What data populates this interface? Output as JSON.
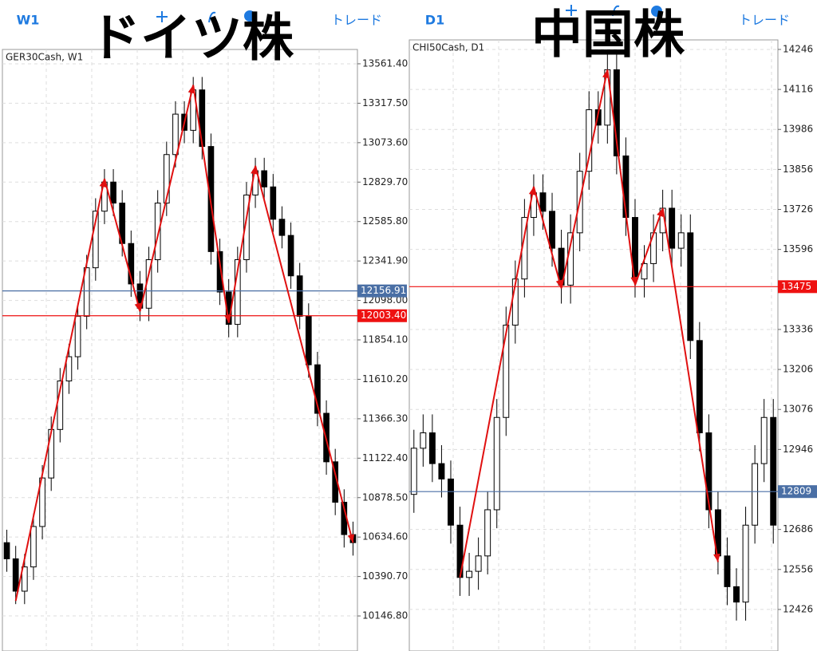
{
  "chart_data": [
    {
      "type": "candlestick",
      "title": "ドイツ株",
      "timeframe": "W1",
      "trade_label": "トレード",
      "symbol_label": "GER30Cash, W1",
      "open": [
        10600,
        10500,
        10300,
        10450,
        10700,
        11000,
        11300,
        11600,
        11750,
        12000,
        12300,
        12650,
        12830,
        12700,
        12450,
        12200,
        12050,
        12350,
        12700,
        13000,
        13250,
        13150,
        13400,
        13050,
        12400,
        12150,
        11950,
        12350,
        12750,
        12900,
        12800,
        12600,
        12500,
        12250,
        12000,
        11700,
        11400,
        11100,
        10850,
        10650
      ],
      "high": [
        10680,
        10580,
        10530,
        10780,
        11080,
        11380,
        11680,
        11830,
        12080,
        12380,
        12730,
        12910,
        12910,
        12780,
        12530,
        12280,
        12430,
        12780,
        13080,
        13330,
        13330,
        13480,
        13480,
        13130,
        12480,
        12230,
        12430,
        12830,
        12980,
        12980,
        12880,
        12680,
        12580,
        12330,
        12080,
        11780,
        11480,
        11180,
        10930,
        10730
      ],
      "low": [
        10420,
        10220,
        10220,
        10370,
        10620,
        10920,
        11220,
        11520,
        11670,
        11920,
        12220,
        12570,
        12620,
        12370,
        12120,
        11970,
        11970,
        12270,
        12620,
        12920,
        13070,
        13070,
        12970,
        12320,
        12070,
        11870,
        11870,
        12270,
        12670,
        12720,
        12520,
        12420,
        12170,
        11920,
        11620,
        11320,
        11020,
        10770,
        10570,
        10520
      ],
      "close": [
        10500,
        10300,
        10450,
        10700,
        11000,
        11300,
        11600,
        11750,
        12000,
        12300,
        12650,
        12830,
        12700,
        12450,
        12200,
        12050,
        12350,
        12700,
        13000,
        13250,
        13150,
        13400,
        13050,
        12400,
        12150,
        11950,
        12350,
        12750,
        12900,
        12800,
        12600,
        12500,
        12250,
        12000,
        11700,
        11400,
        11100,
        10850,
        10650,
        10600
      ],
      "ylim": [
        9930,
        13650
      ],
      "yticks": [
        {
          "value": 13561.4,
          "label": "13561.40"
        },
        {
          "value": 13317.5,
          "label": "13317.50"
        },
        {
          "value": 13073.6,
          "label": "13073.60"
        },
        {
          "value": 12829.7,
          "label": "12829.70"
        },
        {
          "value": 12585.8,
          "label": "12585.80"
        },
        {
          "value": 12341.9,
          "label": "12341.90"
        },
        {
          "value": 12098,
          "label": "12098.00"
        },
        {
          "value": 11854.1,
          "label": "11854.10"
        },
        {
          "value": 11610.2,
          "label": "11610.20"
        },
        {
          "value": 11366.3,
          "label": "11366.30"
        },
        {
          "value": 11122.4,
          "label": "11122.40"
        },
        {
          "value": 10878.5,
          "label": "10878.50"
        },
        {
          "value": 10634.6,
          "label": "10634.60"
        },
        {
          "value": 10390.7,
          "label": "10390.70"
        },
        {
          "value": 10146.8,
          "label": "10146.80"
        }
      ],
      "levels": [
        {
          "value": 12156.91,
          "label": "12156.91",
          "color": "#4a6fa5"
        },
        {
          "value": 12003.4,
          "label": "12003.40",
          "color": "#ee1111"
        }
      ],
      "zigzag": {
        "color": "#e01010",
        "x": [
          1,
          11,
          15,
          21,
          25,
          28,
          39
        ],
        "values": [
          10240,
          12850,
          12030,
          13430,
          11960,
          12930,
          10600
        ]
      }
    },
    {
      "type": "candlestick",
      "title": "中国株",
      "timeframe": "D1",
      "trade_label": "トレード",
      "symbol_label": "CHI50Cash, D1",
      "open": [
        12800,
        12950,
        13000,
        12900,
        12850,
        12700,
        12530,
        12550,
        12600,
        12750,
        13050,
        13350,
        13500,
        13700,
        13780,
        13720,
        13600,
        13480,
        13650,
        13850,
        14050,
        14000,
        14180,
        13900,
        13700,
        13500,
        13550,
        13650,
        13730,
        13600,
        13650,
        13300,
        13000,
        12750,
        12600,
        12500,
        12450,
        12700,
        12900,
        13050
      ],
      "high": [
        13010,
        13060,
        13060,
        12960,
        12910,
        12760,
        12610,
        12660,
        12810,
        13110,
        13410,
        13560,
        13760,
        13840,
        13840,
        13780,
        13660,
        13710,
        13910,
        14110,
        14110,
        14240,
        14240,
        13960,
        13760,
        13610,
        13710,
        13790,
        13790,
        13710,
        13710,
        13360,
        13060,
        12810,
        12660,
        12560,
        12760,
        12960,
        13110,
        13110
      ],
      "low": [
        12740,
        12890,
        12840,
        12790,
        12640,
        12470,
        12470,
        12490,
        12540,
        12690,
        12990,
        13290,
        13440,
        13640,
        13660,
        13540,
        13420,
        13420,
        13590,
        13790,
        13940,
        13940,
        13840,
        13640,
        13440,
        13440,
        13490,
        13590,
        13540,
        13540,
        13240,
        12940,
        12690,
        12540,
        12440,
        12390,
        12390,
        12640,
        12840,
        12640
      ],
      "close": [
        12950,
        13000,
        12900,
        12850,
        12700,
        12530,
        12550,
        12600,
        12750,
        13050,
        13350,
        13500,
        13700,
        13780,
        13720,
        13600,
        13480,
        13650,
        13850,
        14050,
        14000,
        14180,
        13900,
        13700,
        13500,
        13550,
        13650,
        13730,
        13600,
        13650,
        13300,
        13000,
        12750,
        12600,
        12500,
        12450,
        12700,
        12900,
        13050,
        12700
      ],
      "ylim": [
        12291,
        14277
      ],
      "yticks": [
        14246,
        14116,
        13986,
        13856,
        13726,
        13596,
        13336,
        13206,
        13076,
        12946,
        12686,
        12556,
        12426
      ],
      "levels": [
        {
          "value": 13475,
          "color": "#ee1111"
        },
        {
          "value": 12809,
          "color": "#4a6fa5"
        }
      ],
      "zigzag": {
        "color": "#e01010",
        "x": [
          5,
          13,
          16,
          21,
          24,
          27,
          33
        ],
        "values": [
          12530,
          13800,
          13470,
          14180,
          13480,
          13730,
          12580
        ]
      }
    }
  ]
}
